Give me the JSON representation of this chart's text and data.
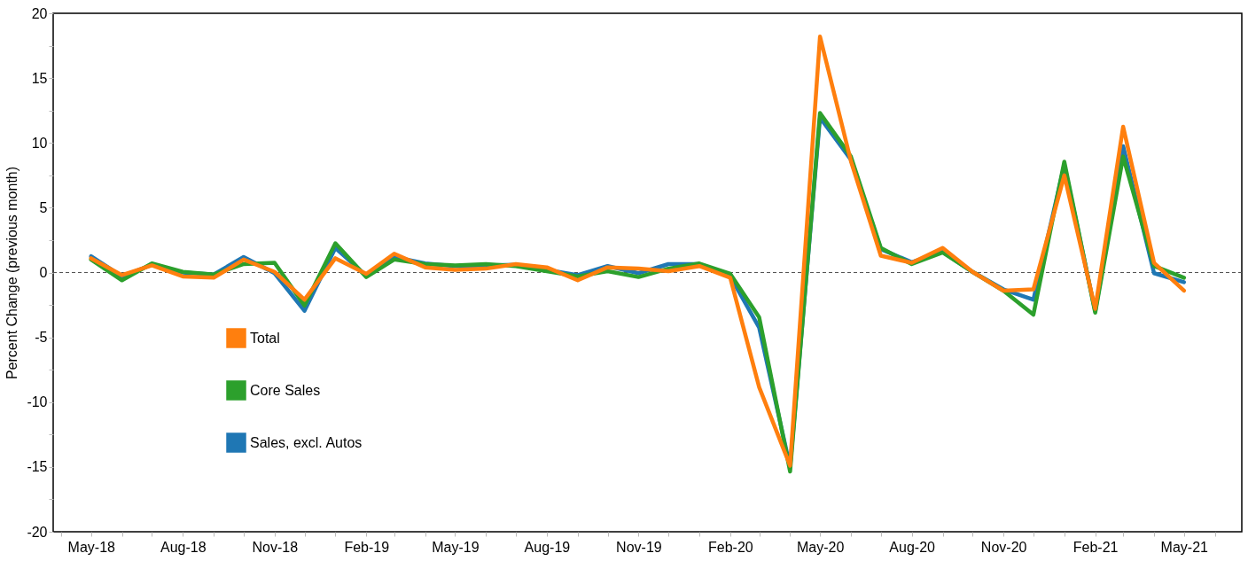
{
  "chart_data": {
    "type": "line",
    "ylabel": "Percent Change (previous month)",
    "x": [
      "2018-05",
      "2018-06",
      "2018-07",
      "2018-08",
      "2018-09",
      "2018-10",
      "2018-11",
      "2018-12",
      "2019-01",
      "2019-02",
      "2019-03",
      "2019-04",
      "2019-05",
      "2019-06",
      "2019-07",
      "2019-08",
      "2019-09",
      "2019-10",
      "2019-11",
      "2019-12",
      "2020-01",
      "2020-02",
      "2020-03",
      "2020-04",
      "2020-05",
      "2020-06",
      "2020-07",
      "2020-08",
      "2020-09",
      "2020-10",
      "2020-11",
      "2020-12",
      "2021-01",
      "2021-02",
      "2021-03",
      "2021-04",
      "2021-05"
    ],
    "series": [
      {
        "name": "Total",
        "color": "#ff7f0e",
        "values": [
          1.1,
          -0.2,
          0.55,
          -0.3,
          -0.4,
          1.0,
          0.05,
          -2.1,
          1.1,
          -0.1,
          1.45,
          0.4,
          0.2,
          0.3,
          0.65,
          0.4,
          -0.6,
          0.4,
          0.3,
          0.1,
          0.5,
          -0.4,
          -8.85,
          -14.9,
          18.2,
          8.6,
          1.3,
          0.75,
          1.9,
          0.05,
          -1.4,
          -1.3,
          7.5,
          -2.8,
          11.25,
          0.75,
          -1.4
        ]
      },
      {
        "name": "Core Sales",
        "color": "#2ca02c",
        "values": [
          1.0,
          -0.6,
          0.7,
          0.05,
          -0.15,
          0.65,
          0.75,
          -2.55,
          2.25,
          -0.35,
          1.0,
          0.65,
          0.55,
          0.65,
          0.5,
          0.1,
          -0.3,
          0.1,
          -0.35,
          0.3,
          0.7,
          -0.1,
          -3.45,
          -15.35,
          12.3,
          8.95,
          1.9,
          0.65,
          1.55,
          0.05,
          -1.4,
          -3.25,
          8.55,
          -3.1,
          8.95,
          0.5,
          -0.4
        ]
      },
      {
        "name": "Sales, excl. Autos",
        "color": "#1f77b4",
        "values": [
          1.25,
          -0.3,
          0.6,
          0.0,
          -0.15,
          1.2,
          -0.05,
          -2.95,
          1.9,
          -0.25,
          1.2,
          0.7,
          0.5,
          0.55,
          0.6,
          0.2,
          -0.2,
          0.5,
          -0.05,
          0.65,
          0.65,
          -0.3,
          -4.25,
          -15.0,
          11.95,
          8.7,
          1.8,
          0.8,
          1.6,
          0.05,
          -1.3,
          -2.1,
          8.3,
          -3.0,
          9.75,
          -0.05,
          -0.75
        ]
      }
    ],
    "xlim": [
      "2018-03-24",
      "2021-06-28"
    ],
    "xticks": [
      {
        "value": "2018-04",
        "label": null
      },
      {
        "value": "2018-05",
        "label": "May-18"
      },
      {
        "value": "2018-06",
        "label": null
      },
      {
        "value": "2018-07",
        "label": null
      },
      {
        "value": "2018-08",
        "label": "Aug-18"
      },
      {
        "value": "2018-09",
        "label": null
      },
      {
        "value": "2018-10",
        "label": null
      },
      {
        "value": "2018-11",
        "label": "Nov-18"
      },
      {
        "value": "2018-12",
        "label": null
      },
      {
        "value": "2019-01",
        "label": null
      },
      {
        "value": "2019-02",
        "label": "Feb-19"
      },
      {
        "value": "2019-03",
        "label": null
      },
      {
        "value": "2019-04",
        "label": null
      },
      {
        "value": "2019-05",
        "label": "May-19"
      },
      {
        "value": "2019-06",
        "label": null
      },
      {
        "value": "2019-07",
        "label": null
      },
      {
        "value": "2019-08",
        "label": "Aug-19"
      },
      {
        "value": "2019-09",
        "label": null
      },
      {
        "value": "2019-10",
        "label": null
      },
      {
        "value": "2019-11",
        "label": "Nov-19"
      },
      {
        "value": "2019-12",
        "label": null
      },
      {
        "value": "2020-01",
        "label": null
      },
      {
        "value": "2020-02",
        "label": "Feb-20"
      },
      {
        "value": "2020-03",
        "label": null
      },
      {
        "value": "2020-04",
        "label": null
      },
      {
        "value": "2020-05",
        "label": "May-20"
      },
      {
        "value": "2020-06",
        "label": null
      },
      {
        "value": "2020-07",
        "label": null
      },
      {
        "value": "2020-08",
        "label": "Aug-20"
      },
      {
        "value": "2020-09",
        "label": null
      },
      {
        "value": "2020-10",
        "label": null
      },
      {
        "value": "2020-11",
        "label": "Nov-20"
      },
      {
        "value": "2020-12",
        "label": null
      },
      {
        "value": "2021-01",
        "label": null
      },
      {
        "value": "2021-02",
        "label": "Feb-21"
      },
      {
        "value": "2021-03",
        "label": null
      },
      {
        "value": "2021-04",
        "label": null
      },
      {
        "value": "2021-05",
        "label": "May-21"
      },
      {
        "value": "2021-06",
        "label": null
      }
    ],
    "ylim": [
      -20,
      20
    ],
    "yticks": [
      -20,
      {
        "value": -17.5,
        "label": null
      },
      -15,
      {
        "value": -12.5,
        "label": null
      },
      -10,
      {
        "value": -7.5,
        "label": null
      },
      -5,
      {
        "value": -2.5,
        "label": null
      },
      0,
      {
        "value": 2.5,
        "label": null
      },
      5,
      {
        "value": 7.5,
        "label": null
      },
      10,
      {
        "value": 12.5,
        "label": null
      },
      15,
      {
        "value": 17.5,
        "label": null
      },
      20
    ],
    "ref_lines": [
      {
        "axis": "y",
        "value": 0,
        "color": "#555555",
        "line_style": "dashed"
      }
    ],
    "grid": false,
    "legend": "left",
    "marker": "none",
    "line_style": "solid"
  }
}
